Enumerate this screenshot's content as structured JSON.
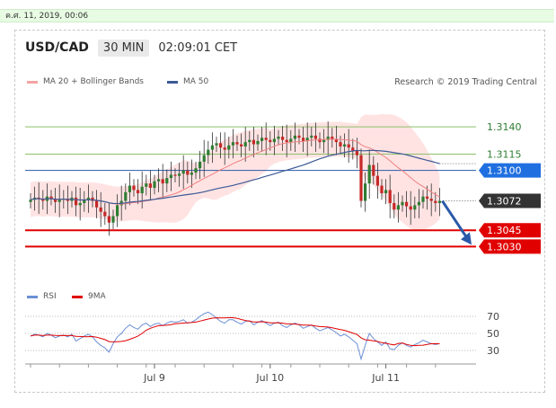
{
  "date_text": "ค.ศ. 11, 2019, 00:06",
  "header": {
    "pair": "USD/CAD",
    "timeframe": "30 MIN",
    "time": "02:09:01 CET"
  },
  "legend": {
    "ma20": "MA 20 + Bollinger Bands",
    "ma50": "MA 50",
    "research": "Research © 2019 Trading Central"
  },
  "rsi_legend": {
    "rsi": "RSI",
    "ma9": "9MA"
  },
  "colors": {
    "up": "#2e7d32",
    "down": "#c62828",
    "band": "#ffd9d9",
    "ma20": "#f08080",
    "ma50": "#3c5a96",
    "support": "#e00000",
    "pivot": "#2a59a8",
    "resistance": "#8ec16a",
    "current": "#333333",
    "arrow": "#2a59a8"
  },
  "chart_data": {
    "type": "candlestick",
    "ylim": [
      1.2994,
      1.3174
    ],
    "levels": [
      {
        "value": 1.314,
        "label": "1.3140",
        "kind": "resistance"
      },
      {
        "value": 1.3115,
        "label": "1.3115",
        "kind": "resistance"
      },
      {
        "value": 1.31,
        "label": "1.3100",
        "kind": "pivot"
      },
      {
        "value": 1.3072,
        "label": "1.3072",
        "kind": "current"
      },
      {
        "value": 1.3045,
        "label": "1.3045",
        "kind": "support"
      },
      {
        "value": 1.303,
        "label": "1.3030",
        "kind": "support"
      }
    ],
    "x_ticks": [
      {
        "bar": 30,
        "label": "Jul 9"
      },
      {
        "bar": 58,
        "label": "Jul 10"
      },
      {
        "bar": 86,
        "label": "Jul 11"
      }
    ],
    "close": [
      1.3073,
      1.3075,
      1.3074,
      1.3072,
      1.3076,
      1.3074,
      1.3071,
      1.3073,
      1.3074,
      1.3072,
      1.3075,
      1.3068,
      1.307,
      1.3073,
      1.3075,
      1.3072,
      1.3066,
      1.3062,
      1.3058,
      1.3052,
      1.3058,
      1.3068,
      1.3072,
      1.308,
      1.3086,
      1.3082,
      1.3079,
      1.3085,
      1.3088,
      1.3084,
      1.309,
      1.3092,
      1.3088,
      1.3093,
      1.3096,
      1.3095,
      1.3097,
      1.31,
      1.3096,
      1.3098,
      1.3102,
      1.3108,
      1.3114,
      1.3119,
      1.3123,
      1.3125,
      1.3121,
      1.3119,
      1.3123,
      1.3126,
      1.3124,
      1.3122,
      1.3126,
      1.3128,
      1.3124,
      1.3127,
      1.313,
      1.3128,
      1.3126,
      1.3129,
      1.3131,
      1.3128,
      1.3126,
      1.3129,
      1.3132,
      1.313,
      1.3127,
      1.313,
      1.3132,
      1.3129,
      1.3126,
      1.3128,
      1.3131,
      1.3129,
      1.3126,
      1.3122,
      1.3124,
      1.3121,
      1.3118,
      1.3114,
      1.3072,
      1.3088,
      1.3105,
      1.3095,
      1.3086,
      1.3079,
      1.3082,
      1.307,
      1.3064,
      1.3068,
      1.3071,
      1.3067,
      1.3064,
      1.3068,
      1.3071,
      1.3076,
      1.3074,
      1.3072,
      1.307,
      1.3072
    ],
    "rsi": [
      47,
      49,
      48,
      46,
      50,
      48,
      45,
      47,
      48,
      46,
      49,
      41,
      44,
      47,
      49,
      46,
      40,
      36,
      33,
      28,
      38,
      46,
      50,
      56,
      60,
      57,
      55,
      60,
      62,
      58,
      61,
      62,
      59,
      62,
      64,
      63,
      64,
      66,
      62,
      63,
      66,
      70,
      73,
      75,
      72,
      68,
      64,
      62,
      66,
      66,
      63,
      61,
      64,
      65,
      60,
      63,
      65,
      62,
      59,
      62,
      63,
      59,
      57,
      60,
      62,
      60,
      56,
      58,
      60,
      56,
      53,
      55,
      57,
      54,
      51,
      47,
      49,
      46,
      42,
      38,
      20,
      36,
      50,
      44,
      40,
      36,
      40,
      32,
      31,
      36,
      39,
      36,
      34,
      37,
      39,
      42,
      40,
      38,
      37,
      38
    ],
    "rsi_ticks": [
      70,
      50,
      30
    ]
  }
}
